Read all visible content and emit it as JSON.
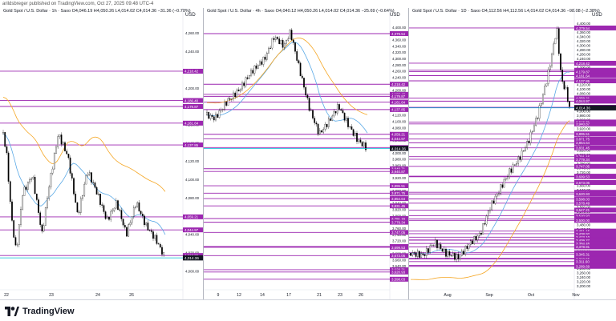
{
  "top_text": "arildsbreger published on TradingView.com, Oct 27, 2025 09:48 UTC-4",
  "panels": [
    {
      "header": "Gold Spot / U.S. Dollar · 1h · Saxo  O4,046.19  H4,050.26  L4,014.02  C4,014.36  −31.36 (−0.78%)",
      "currency": "USD",
      "x_labels": [
        "22",
        "23",
        "24",
        "26"
      ],
      "y_labels": [
        "4,260.00",
        "4,240.00",
        "4,220.00",
        "4,200.00",
        "4,180.00",
        "4,160.00",
        "4,140.00",
        "4,120.00",
        "4,100.00",
        "4,080.00",
        "4,060.00",
        "4,040.00",
        "4,020.00",
        "4,000.00"
      ],
      "levels": [
        "4,218.42",
        "4,186.40",
        "4,179.87",
        "4,161.64",
        "4,137.85",
        "4,059.21",
        "4,044.97",
        "4,017.00"
      ],
      "current": "4,014.36"
    },
    {
      "header": "Gold Spot / U.S. Dollar · 4h · Saxo  O4,040.12  H4,050.26  L4,014.02  C4,014.36  −25.69 (−0.64%)",
      "currency": "USD",
      "x_labels": [
        "9",
        "12",
        "14",
        "17",
        "21",
        "23",
        "26"
      ],
      "y_labels": [
        "4,400.00",
        "4,380.00",
        "4,360.00",
        "4,340.00",
        "4,320.00",
        "4,300.00",
        "4,280.00",
        "4,260.00",
        "4,240.00",
        "4,220.00",
        "4,200.00",
        "4,180.00",
        "4,160.00",
        "4,140.00",
        "4,120.00",
        "4,100.00",
        "4,080.00",
        "4,060.00",
        "4,040.00",
        "4,020.00",
        "4,000.00",
        "3,980.00",
        "3,960.00",
        "3,940.00",
        "3,920.00",
        "3,900.00",
        "3,880.00",
        "3,860.00",
        "3,840.00",
        "3,820.00",
        "3,800.00",
        "3,780.00",
        "3,760.00",
        "3,740.00",
        "3,720.00",
        "3,700.00",
        "3,680.00",
        "3,660.00",
        "3,640.00",
        "3,620.00",
        "3,600.00"
      ],
      "levels": [
        "4,379.54",
        "4,218.42",
        "4,186.40",
        "4,179.87",
        "4,161.64",
        "4,137.85",
        "4,059.21",
        "4,044.97",
        "4,017.00",
        "3,949.71",
        "3,940.87",
        "3,895.51",
        "3,871.75",
        "3,854.64",
        "3,831.45",
        "3,791.16",
        "3,779.34",
        "3,747.05",
        "3,702.00",
        "3,699.53",
        "3,673.06",
        "3,628.31",
        "3,620.93",
        "3,598.03"
      ],
      "current": "4,014.36"
    },
    {
      "header": "Gold Spot / U.S. Dollar · 1D · Saxo  O4,112.56  H4,112.56  L4,014.02  C4,014.36  −98.08 (−2.38%)",
      "currency": "USD",
      "x_labels": [
        "Aug",
        "Sep",
        "Oct",
        "Nov"
      ],
      "y_labels": [
        "4,400.00",
        "4,380.00",
        "4,360.00",
        "4,340.00",
        "4,320.00",
        "4,300.00",
        "4,280.00",
        "4,260.00",
        "4,240.00",
        "4,220.00",
        "4,200.00",
        "4,180.00",
        "4,160.00",
        "4,140.00",
        "4,120.00",
        "4,100.00",
        "4,080.00",
        "4,060.00",
        "4,040.00",
        "4,020.00",
        "4,000.00",
        "3,980.00",
        "3,960.00",
        "3,940.00",
        "3,920.00",
        "3,900.00",
        "3,880.00",
        "3,860.00",
        "3,840.00",
        "3,820.00",
        "3,800.00",
        "3,780.00",
        "3,760.00",
        "3,740.00",
        "3,720.00",
        "3,700.00",
        "3,680.00",
        "3,660.00",
        "3,640.00",
        "3,620.00",
        "3,600.00",
        "3,580.00",
        "3,560.00",
        "3,540.00",
        "3,520.00",
        "3,500.00",
        "3,480.00",
        "3,460.00",
        "3,440.00",
        "3,420.00",
        "3,400.00",
        "3,380.00",
        "3,360.00",
        "3,340.00",
        "3,320.00",
        "3,300.00",
        "3,280.00",
        "3,260.00",
        "3,240.00",
        "3,220.00",
        "3,200.00"
      ],
      "levels": [
        "4,379.54",
        "4,218.42",
        "4,186.40",
        "4,179.87",
        "4,161.64",
        "4,137.85",
        "4,059.21",
        "4,044.97",
        "4,017.00",
        "3,949.71",
        "3,940.87",
        "3,895.51",
        "3,871.75",
        "3,854.64",
        "3,831.45",
        "3,791.16",
        "3,779.34",
        "3,747.05",
        "3,702.00",
        "3,699.53",
        "3,673.06",
        "3,628.31",
        "3,620.93",
        "3,598.03",
        "3,578.49",
        "3,547.21",
        "3,520.93",
        "3,506.70",
        "3,500.00",
        "3,451.15",
        "3,438.92",
        "3,423.10",
        "3,410.50",
        "3,409.27",
        "3,394.45",
        "3,378.91",
        "3,352.18",
        "3,345.31",
        "3,326.38",
        "3,323.55",
        "3,311.60",
        "3,293.99",
        "3,289.69"
      ],
      "current": "4,014.36"
    }
  ],
  "footer": {
    "logo_text": "TradingView",
    "logo_icon": "tradingview-logo-icon"
  },
  "colors": {
    "level": "#9c27b0",
    "current": "#00bcd4",
    "ma_blue": "#5aa9e6",
    "ma_orange": "#f5a623",
    "up": "#ffffff",
    "down": "#000000"
  }
}
